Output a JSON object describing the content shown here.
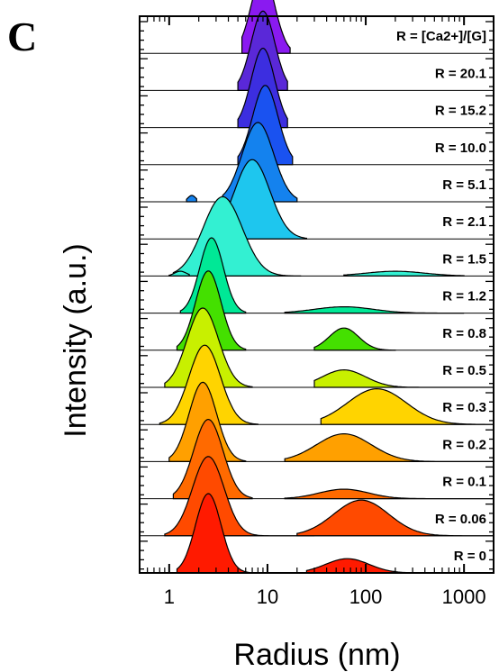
{
  "chart_data": {
    "type": "area",
    "panel_label": "C",
    "title": "",
    "xlabel": "Radius (nm)",
    "ylabel": "Intensity (a.u.)",
    "x_scale": "log",
    "xlim": [
      0.5,
      2000
    ],
    "x_ticks": [
      1,
      10,
      100,
      1000
    ],
    "x_tick_labels": [
      "1",
      "10",
      "100",
      "1000"
    ],
    "legend_header": "R = [Ca2+]/[G]",
    "grid": false,
    "series": [
      {
        "name": "R = 0",
        "color": "#ff1a00",
        "peaks": [
          {
            "center": 2.5,
            "width": 0.13,
            "height": 1.0,
            "from": 1.2,
            "to": 6.5
          },
          {
            "center": 65,
            "width": 0.22,
            "height": 0.18,
            "from": 25,
            "to": 2000
          }
        ]
      },
      {
        "name": "R = 0.06",
        "color": "#ff4a00",
        "peaks": [
          {
            "center": 2.5,
            "width": 0.16,
            "height": 1.0,
            "from": 0.9,
            "to": 30
          },
          {
            "center": 90,
            "width": 0.28,
            "height": 0.45,
            "from": 20,
            "to": 2000
          }
        ]
      },
      {
        "name": "R = 0.1",
        "color": "#ff6a00",
        "peaks": [
          {
            "center": 2.5,
            "width": 0.15,
            "height": 1.0,
            "from": 1.1,
            "to": 7
          },
          {
            "center": 60,
            "width": 0.25,
            "height": 0.12,
            "from": 15,
            "to": 2000
          }
        ]
      },
      {
        "name": "R = 0.2",
        "color": "#ffa000",
        "peaks": [
          {
            "center": 2.2,
            "width": 0.14,
            "height": 1.0,
            "from": 1.0,
            "to": 6
          },
          {
            "center": 60,
            "width": 0.28,
            "height": 0.35,
            "from": 15,
            "to": 2000
          }
        ]
      },
      {
        "name": "R = 0.3",
        "color": "#ffd400",
        "peaks": [
          {
            "center": 2.3,
            "width": 0.16,
            "height": 1.0,
            "from": 0.8,
            "to": 8
          },
          {
            "center": 130,
            "width": 0.3,
            "height": 0.45,
            "from": 35,
            "to": 2000
          }
        ]
      },
      {
        "name": "R = 0.5",
        "color": "#c8f000",
        "peaks": [
          {
            "center": 2.2,
            "width": 0.16,
            "height": 1.0,
            "from": 0.9,
            "to": 7
          },
          {
            "center": 60,
            "width": 0.22,
            "height": 0.22,
            "from": 30,
            "to": 2000
          }
        ]
      },
      {
        "name": "R = 0.8",
        "color": "#44e000",
        "peaks": [
          {
            "center": 2.5,
            "width": 0.13,
            "height": 1.0,
            "from": 1.2,
            "to": 6
          },
          {
            "center": 60,
            "width": 0.15,
            "height": 0.28,
            "from": 30,
            "to": 200
          }
        ]
      },
      {
        "name": "R = 1.2",
        "color": "#00e896",
        "peaks": [
          {
            "center": 2.7,
            "width": 0.12,
            "height": 0.95,
            "from": 1.3,
            "to": 6
          },
          {
            "center": 60,
            "width": 0.3,
            "height": 0.08,
            "from": 15,
            "to": 1000
          }
        ]
      },
      {
        "name": "R = 1.5",
        "color": "#33f0d2",
        "peaks": [
          {
            "center": 3.5,
            "width": 0.2,
            "height": 1.0,
            "from": 1.1,
            "to": 22
          },
          {
            "center": 1.3,
            "width": 0.06,
            "height": 0.06,
            "from": 1.0,
            "to": 1.6
          },
          {
            "center": 200,
            "width": 0.3,
            "height": 0.06,
            "from": 60,
            "to": 1000
          }
        ]
      },
      {
        "name": "R = 2.1",
        "color": "#1ec6ee",
        "peaks": [
          {
            "center": 7,
            "width": 0.18,
            "height": 1.0,
            "from": 2.5,
            "to": 25
          }
        ]
      },
      {
        "name": "R = 5.1",
        "color": "#1482ee",
        "peaks": [
          {
            "center": 8,
            "width": 0.16,
            "height": 1.0,
            "from": 3.5,
            "to": 20
          },
          {
            "center": 1.7,
            "width": 0.04,
            "height": 0.08,
            "from": 1.5,
            "to": 1.9
          }
        ]
      },
      {
        "name": "R = 10.0",
        "color": "#1a52f0",
        "peaks": [
          {
            "center": 9.5,
            "width": 0.13,
            "height": 1.0,
            "from": 5,
            "to": 18
          }
        ]
      },
      {
        "name": "R = 15.2",
        "color": "#3c2ee0",
        "peaks": [
          {
            "center": 9,
            "width": 0.12,
            "height": 1.0,
            "from": 5,
            "to": 16
          }
        ]
      },
      {
        "name": "R = 20.1",
        "color": "#5a28d8",
        "peaks": [
          {
            "center": 9,
            "width": 0.12,
            "height": 1.0,
            "from": 5,
            "to": 16
          }
        ]
      },
      {
        "name": "R = [Ca2+]/[G]",
        "color": "#8a1af0",
        "peaks": [
          {
            "center": 9,
            "width": 0.12,
            "height": 1.0,
            "from": 5.5,
            "to": 17
          }
        ]
      }
    ]
  }
}
